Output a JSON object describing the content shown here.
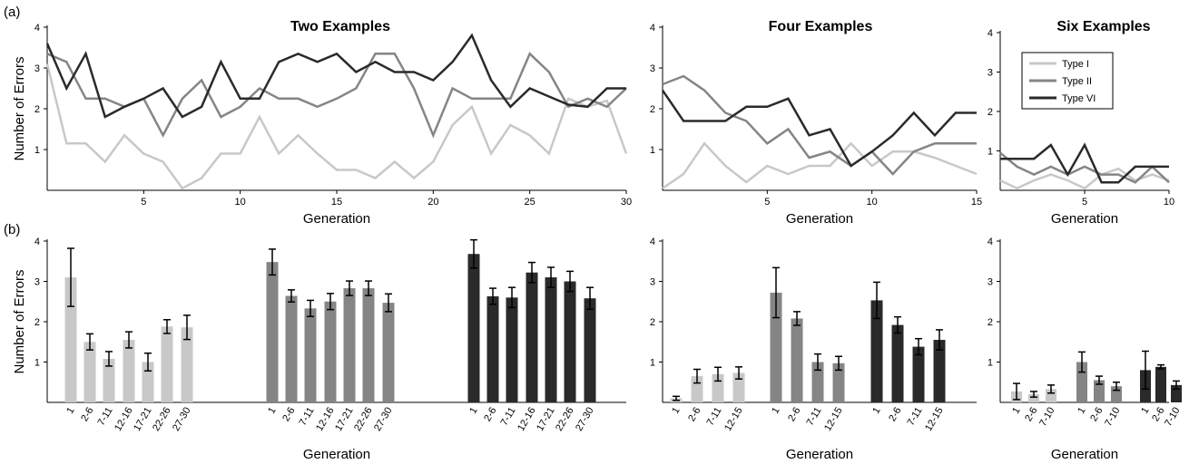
{
  "figure": {
    "panel_labels": [
      "(a)",
      "(b)"
    ]
  },
  "legend": {
    "entries": [
      {
        "label": "Type I",
        "color": "#c8c8c8"
      },
      {
        "label": "Type II",
        "color": "#858585"
      },
      {
        "label": "Type VI",
        "color": "#2a2a2a"
      }
    ]
  },
  "chart_data": [
    {
      "id": "a1",
      "type": "line",
      "title": "Two Examples",
      "xlabel": "Generation",
      "ylabel": "Number of Errors",
      "xlim": [
        0,
        30
      ],
      "ylim": [
        0,
        4
      ],
      "xticks": [
        5,
        10,
        15,
        20,
        25,
        30
      ],
      "yticks": [
        1,
        2,
        3,
        4
      ],
      "x": [
        0,
        1,
        2,
        3,
        4,
        5,
        6,
        7,
        8,
        9,
        10,
        11,
        12,
        13,
        14,
        15,
        16,
        17,
        18,
        19,
        20,
        21,
        22,
        23,
        24,
        25,
        26,
        27,
        28,
        29,
        30
      ],
      "series": [
        {
          "name": "Type I",
          "color": "#c8c8c8",
          "values": [
            3.1,
            1.15,
            1.15,
            0.7,
            1.35,
            0.9,
            0.7,
            0.05,
            0.3,
            0.9,
            0.9,
            1.8,
            0.9,
            1.35,
            0.9,
            0.5,
            0.5,
            0.3,
            0.7,
            0.3,
            0.7,
            1.6,
            2.05,
            0.9,
            1.6,
            1.35,
            0.9,
            2.25,
            2.05,
            2.2,
            0.9
          ]
        },
        {
          "name": "Type II",
          "color": "#858585",
          "values": [
            3.35,
            3.15,
            2.25,
            2.25,
            2.05,
            2.25,
            1.35,
            2.25,
            2.7,
            1.8,
            2.05,
            2.5,
            2.25,
            2.25,
            2.05,
            2.25,
            2.5,
            3.35,
            3.35,
            2.5,
            1.35,
            2.5,
            2.25,
            2.25,
            2.25,
            3.35,
            2.9,
            2.05,
            2.25,
            2.05,
            2.5
          ]
        },
        {
          "name": "Type VI",
          "color": "#2a2a2a",
          "values": [
            3.6,
            2.5,
            3.35,
            1.8,
            2.05,
            2.25,
            2.5,
            1.8,
            2.05,
            3.15,
            2.25,
            2.25,
            3.15,
            3.35,
            3.15,
            3.35,
            2.9,
            3.15,
            2.9,
            2.9,
            2.7,
            3.15,
            3.8,
            2.7,
            2.05,
            2.5,
            2.3,
            2.1,
            2.05,
            2.5,
            2.5
          ]
        }
      ]
    },
    {
      "id": "a2",
      "type": "line",
      "title": "Four Examples",
      "xlabel": "Generation",
      "ylabel": "",
      "xlim": [
        0,
        15
      ],
      "ylim": [
        0,
        4
      ],
      "xticks": [
        5,
        10,
        15
      ],
      "yticks": [
        1,
        2,
        3,
        4
      ],
      "x": [
        0,
        1,
        2,
        3,
        4,
        5,
        6,
        7,
        8,
        9,
        10,
        11,
        12,
        13,
        14,
        15
      ],
      "series": [
        {
          "name": "Type I",
          "color": "#c8c8c8",
          "values": [
            0.05,
            0.4,
            1.15,
            0.6,
            0.2,
            0.6,
            0.4,
            0.6,
            0.6,
            1.15,
            0.6,
            0.95,
            0.95,
            0.8,
            0.6,
            0.4
          ]
        },
        {
          "name": "Type II",
          "color": "#858585",
          "values": [
            2.6,
            2.8,
            2.45,
            1.9,
            1.7,
            1.15,
            1.5,
            0.8,
            0.95,
            0.6,
            0.95,
            0.4,
            0.95,
            1.15,
            1.15,
            1.15
          ]
        },
        {
          "name": "Type VI",
          "color": "#2a2a2a",
          "values": [
            2.45,
            1.7,
            1.7,
            1.7,
            2.05,
            2.05,
            2.25,
            1.35,
            1.5,
            0.6,
            0.95,
            1.35,
            1.9,
            1.35,
            1.9,
            1.9
          ]
        }
      ]
    },
    {
      "id": "a3",
      "type": "line",
      "title": "Six Examples",
      "xlabel": "Generation",
      "ylabel": "",
      "xlim": [
        0,
        10
      ],
      "ylim": [
        0,
        4
      ],
      "xticks": [
        5,
        10
      ],
      "yticks": [
        1,
        2,
        3,
        4
      ],
      "x": [
        0,
        1,
        2,
        3,
        4,
        5,
        6,
        7,
        8,
        9,
        10
      ],
      "series": [
        {
          "name": "Type I",
          "color": "#c8c8c8",
          "values": [
            0.25,
            0.05,
            0.25,
            0.4,
            0.25,
            0.05,
            0.4,
            0.55,
            0.25,
            0.4,
            0.25
          ]
        },
        {
          "name": "Type II",
          "color": "#858585",
          "values": [
            0.95,
            0.6,
            0.4,
            0.6,
            0.4,
            0.6,
            0.4,
            0.4,
            0.2,
            0.6,
            0.2
          ]
        },
        {
          "name": "Type VI",
          "color": "#2a2a2a",
          "values": [
            0.8,
            0.8,
            0.8,
            1.15,
            0.4,
            1.15,
            0.2,
            0.2,
            0.6,
            0.6,
            0.6
          ]
        }
      ]
    },
    {
      "id": "b1",
      "type": "bar",
      "title": "",
      "xlabel": "Generation",
      "ylabel": "Number of Errors",
      "ylim": [
        0,
        4
      ],
      "yticks": [
        1,
        2,
        3,
        4
      ],
      "groups": [
        {
          "name": "Type I",
          "color": "#c8c8c8",
          "categories": [
            "1",
            "2-6",
            "7-11",
            "12-16",
            "17-21",
            "22-26",
            "27-30"
          ],
          "values": [
            3.1,
            1.5,
            1.08,
            1.55,
            1.0,
            1.88,
            1.86
          ],
          "errors": [
            0.72,
            0.2,
            0.18,
            0.2,
            0.22,
            0.17,
            0.3
          ]
        },
        {
          "name": "Type II",
          "color": "#858585",
          "categories": [
            "1",
            "2-6",
            "7-11",
            "12-16",
            "17-21",
            "22-26",
            "27-30"
          ],
          "values": [
            3.48,
            2.64,
            2.33,
            2.5,
            2.83,
            2.83,
            2.47
          ],
          "errors": [
            0.32,
            0.15,
            0.2,
            0.2,
            0.18,
            0.18,
            0.22
          ]
        },
        {
          "name": "Type VI",
          "color": "#2a2a2a",
          "categories": [
            "1",
            "2-6",
            "7-11",
            "12-16",
            "17-21",
            "22-26",
            "27-30"
          ],
          "values": [
            3.68,
            2.63,
            2.6,
            3.22,
            3.1,
            3.0,
            2.58
          ],
          "errors": [
            0.35,
            0.2,
            0.25,
            0.25,
            0.25,
            0.25,
            0.27
          ]
        }
      ]
    },
    {
      "id": "b2",
      "type": "bar",
      "title": "",
      "xlabel": "Generation",
      "ylabel": "",
      "ylim": [
        0,
        4
      ],
      "yticks": [
        1,
        2,
        3,
        4
      ],
      "groups": [
        {
          "name": "Type I",
          "color": "#c8c8c8",
          "categories": [
            "1",
            "2-6",
            "7-11",
            "12-15"
          ],
          "values": [
            0.1,
            0.65,
            0.7,
            0.73
          ],
          "errors": [
            0.05,
            0.17,
            0.17,
            0.15
          ]
        },
        {
          "name": "Type II",
          "color": "#858585",
          "categories": [
            "1",
            "2-6",
            "7-11",
            "12-15"
          ],
          "values": [
            2.72,
            2.08,
            1.0,
            0.97
          ],
          "errors": [
            0.62,
            0.17,
            0.2,
            0.17
          ]
        },
        {
          "name": "Type VI",
          "color": "#2a2a2a",
          "categories": [
            "1",
            "2-6",
            "7-11",
            "12-15"
          ],
          "values": [
            2.53,
            1.92,
            1.38,
            1.55
          ],
          "errors": [
            0.45,
            0.2,
            0.2,
            0.25
          ]
        }
      ]
    },
    {
      "id": "b3",
      "type": "bar",
      "title": "",
      "xlabel": "Generation",
      "ylabel": "",
      "ylim": [
        0,
        4
      ],
      "yticks": [
        1,
        2,
        3,
        4
      ],
      "groups": [
        {
          "name": "Type I",
          "color": "#c8c8c8",
          "categories": [
            "1",
            "2-6",
            "7-10"
          ],
          "values": [
            0.27,
            0.2,
            0.33
          ],
          "errors": [
            0.2,
            0.07,
            0.1
          ]
        },
        {
          "name": "Type II",
          "color": "#858585",
          "categories": [
            "1",
            "2-6",
            "7-10"
          ],
          "values": [
            1.0,
            0.55,
            0.4
          ],
          "errors": [
            0.25,
            0.1,
            0.1
          ]
        },
        {
          "name": "Type VI",
          "color": "#2a2a2a",
          "categories": [
            "1",
            "2-6",
            "7-10"
          ],
          "values": [
            0.8,
            0.88,
            0.43
          ],
          "errors": [
            0.47,
            0.05,
            0.1
          ]
        }
      ]
    }
  ]
}
